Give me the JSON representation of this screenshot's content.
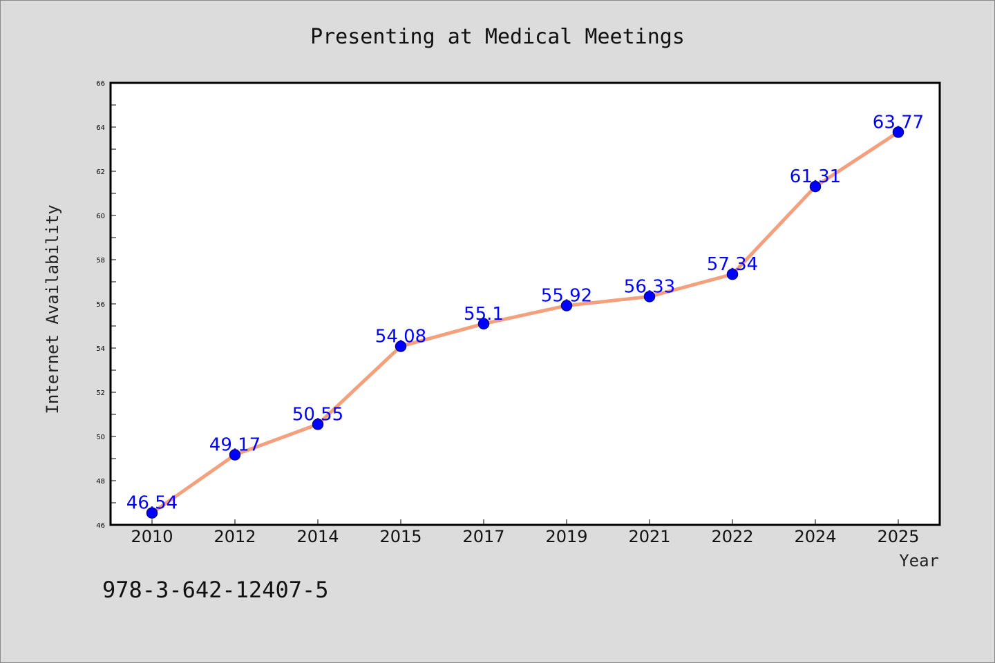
{
  "chart_data": {
    "type": "line",
    "title": "Presenting at Medical Meetings",
    "xlabel": "Year",
    "ylabel": "Internet Availability",
    "categories": [
      "2010",
      "2012",
      "2014",
      "2015",
      "2017",
      "2019",
      "2021",
      "2022",
      "2024",
      "2025"
    ],
    "series": [
      {
        "values": [
          46.54,
          49.17,
          50.55,
          54.08,
          55.1,
          55.92,
          56.33,
          57.34,
          61.31,
          63.77
        ]
      }
    ],
    "data_labels": [
      "46.54",
      "49.17",
      "50.55",
      "54.08",
      "55.1",
      "55.92",
      "56.33",
      "57.34",
      "61.31",
      "63.77"
    ],
    "ylim": [
      46,
      66
    ],
    "yticks": [
      "46",
      "48",
      "50",
      "52",
      "54",
      "56",
      "58",
      "60",
      "62",
      "64",
      "66"
    ],
    "grid": false,
    "legend": "none",
    "colors": {
      "line": "#f4a07c",
      "marker": "#0000ff",
      "marker_edge": "#00008b",
      "label": "#0000ff",
      "background": "#dcdcdc",
      "plot_bg": "#ffffff"
    }
  },
  "footer_text": "978-3-642-12407-5"
}
